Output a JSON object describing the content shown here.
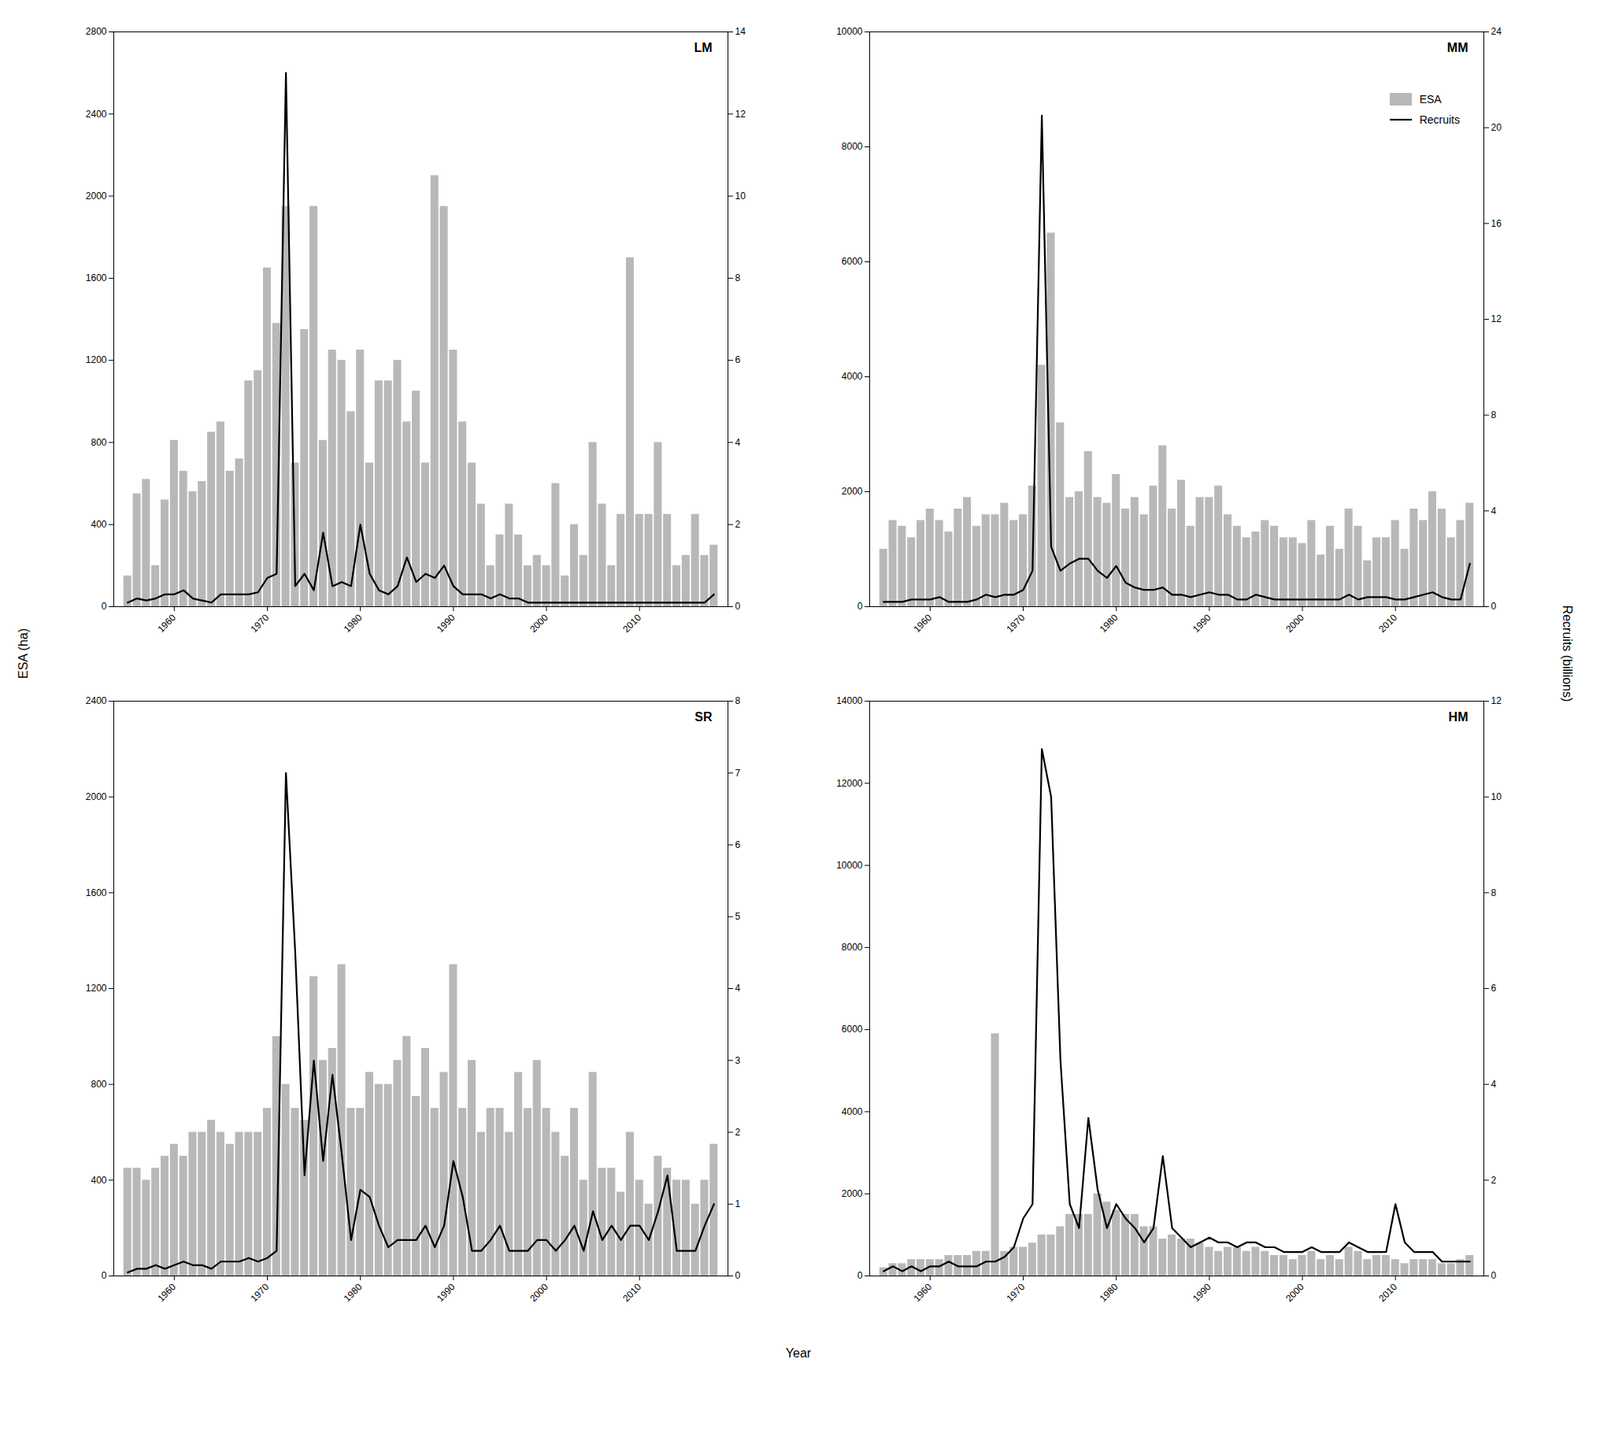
{
  "chart_data": [
    {
      "type": "bar",
      "title": "LM",
      "x": [
        1955,
        1956,
        1957,
        1958,
        1959,
        1960,
        1961,
        1962,
        1963,
        1964,
        1965,
        1966,
        1967,
        1968,
        1969,
        1970,
        1971,
        1972,
        1973,
        1974,
        1975,
        1976,
        1977,
        1978,
        1979,
        1980,
        1981,
        1982,
        1983,
        1984,
        1985,
        1986,
        1987,
        1988,
        1989,
        1990,
        1991,
        1992,
        1993,
        1994,
        1995,
        1996,
        1997,
        1998,
        1999,
        2000,
        2001,
        2002,
        2003,
        2004,
        2005,
        2006,
        2007,
        2008,
        2009,
        2010,
        2011,
        2012,
        2013,
        2014,
        2015,
        2016,
        2017,
        2018
      ],
      "series": [
        {
          "name": "ESA",
          "type": "bar",
          "color": "#b8b8b8",
          "values": [
            150,
            550,
            620,
            200,
            520,
            810,
            660,
            560,
            610,
            850,
            900,
            660,
            720,
            1100,
            1150,
            1650,
            1380,
            1950,
            700,
            1350,
            1950,
            810,
            1250,
            1200,
            950,
            1250,
            700,
            1100,
            1100,
            1200,
            900,
            1050,
            700,
            2100,
            1950,
            1250,
            900,
            700,
            500,
            200,
            350,
            500,
            350,
            200,
            250,
            200,
            600,
            150,
            400,
            250,
            800,
            500,
            200,
            450,
            1700,
            450,
            450,
            800,
            450,
            200,
            250,
            450,
            250,
            300
          ]
        },
        {
          "name": "Recruits",
          "type": "line",
          "axis": "y2",
          "color": "#000000",
          "values": [
            0.1,
            0.2,
            0.15,
            0.2,
            0.3,
            0.3,
            0.4,
            0.2,
            0.15,
            0.1,
            0.3,
            0.3,
            0.3,
            0.3,
            0.35,
            0.7,
            0.8,
            13.0,
            0.5,
            0.8,
            0.4,
            1.8,
            0.5,
            0.6,
            0.5,
            2.0,
            0.8,
            0.4,
            0.3,
            0.5,
            1.2,
            0.6,
            0.8,
            0.7,
            1.0,
            0.5,
            0.3,
            0.3,
            0.3,
            0.2,
            0.3,
            0.2,
            0.2,
            0.1,
            0.1,
            0.1,
            0.1,
            0.1,
            0.1,
            0.1,
            0.1,
            0.1,
            0.1,
            0.1,
            0.1,
            0.1,
            0.1,
            0.1,
            0.1,
            0.1,
            0.1,
            0.1,
            0.1,
            0.3
          ]
        }
      ],
      "xlim": [
        1953.5,
        2019.5
      ],
      "xticks": [
        1960,
        1970,
        1980,
        1990,
        2000,
        2010
      ],
      "ylim": [
        0,
        2800
      ],
      "yticks": [
        0,
        400,
        800,
        1200,
        1600,
        2000,
        2400,
        2800
      ],
      "y2lim": [
        0,
        14
      ],
      "y2ticks": [
        0,
        2,
        4,
        6,
        8,
        10,
        12,
        14
      ],
      "grid": false
    },
    {
      "type": "bar",
      "title": "MM",
      "x": [
        1955,
        1956,
        1957,
        1958,
        1959,
        1960,
        1961,
        1962,
        1963,
        1964,
        1965,
        1966,
        1967,
        1968,
        1969,
        1970,
        1971,
        1972,
        1973,
        1974,
        1975,
        1976,
        1977,
        1978,
        1979,
        1980,
        1981,
        1982,
        1983,
        1984,
        1985,
        1986,
        1987,
        1988,
        1989,
        1990,
        1991,
        1992,
        1993,
        1994,
        1995,
        1996,
        1997,
        1998,
        1999,
        2000,
        2001,
        2002,
        2003,
        2004,
        2005,
        2006,
        2007,
        2008,
        2009,
        2010,
        2011,
        2012,
        2013,
        2014,
        2015,
        2016,
        2017,
        2018
      ],
      "series": [
        {
          "name": "ESA",
          "type": "bar",
          "color": "#b8b8b8",
          "values": [
            1000,
            1500,
            1400,
            1200,
            1500,
            1700,
            1500,
            1300,
            1700,
            1900,
            1400,
            1600,
            1600,
            1800,
            1500,
            1600,
            2100,
            4200,
            6500,
            3200,
            1900,
            2000,
            2700,
            1900,
            1800,
            2300,
            1700,
            1900,
            1600,
            2100,
            2800,
            1700,
            2200,
            1400,
            1900,
            1900,
            2100,
            1600,
            1400,
            1200,
            1300,
            1500,
            1400,
            1200,
            1200,
            1100,
            1500,
            900,
            1400,
            1000,
            1700,
            1400,
            800,
            1200,
            1200,
            1500,
            1000,
            1700,
            1500,
            2000,
            1700,
            1200,
            1500,
            1800
          ]
        },
        {
          "name": "Recruits",
          "type": "line",
          "axis": "y2",
          "color": "#000000",
          "values": [
            0.2,
            0.2,
            0.2,
            0.3,
            0.3,
            0.3,
            0.4,
            0.2,
            0.2,
            0.2,
            0.3,
            0.5,
            0.4,
            0.5,
            0.5,
            0.7,
            1.5,
            20.5,
            2.5,
            1.5,
            1.8,
            2.0,
            2.0,
            1.5,
            1.2,
            1.7,
            1.0,
            0.8,
            0.7,
            0.7,
            0.8,
            0.5,
            0.5,
            0.4,
            0.5,
            0.6,
            0.5,
            0.5,
            0.3,
            0.3,
            0.5,
            0.4,
            0.3,
            0.3,
            0.3,
            0.3,
            0.3,
            0.3,
            0.3,
            0.3,
            0.5,
            0.3,
            0.4,
            0.4,
            0.4,
            0.3,
            0.3,
            0.4,
            0.5,
            0.6,
            0.4,
            0.3,
            0.3,
            1.8
          ]
        }
      ],
      "xlim": [
        1953.5,
        2019.5
      ],
      "xticks": [
        1960,
        1970,
        1980,
        1990,
        2000,
        2010
      ],
      "ylim": [
        0,
        10000
      ],
      "yticks": [
        0,
        2000,
        4000,
        6000,
        8000,
        10000
      ],
      "y2lim": [
        0,
        24
      ],
      "y2ticks": [
        0,
        4,
        8,
        12,
        16,
        20,
        24
      ],
      "grid": false,
      "legend": "upper right"
    },
    {
      "type": "bar",
      "title": "SR",
      "x": [
        1955,
        1956,
        1957,
        1958,
        1959,
        1960,
        1961,
        1962,
        1963,
        1964,
        1965,
        1966,
        1967,
        1968,
        1969,
        1970,
        1971,
        1972,
        1973,
        1974,
        1975,
        1976,
        1977,
        1978,
        1979,
        1980,
        1981,
        1982,
        1983,
        1984,
        1985,
        1986,
        1987,
        1988,
        1989,
        1990,
        1991,
        1992,
        1993,
        1994,
        1995,
        1996,
        1997,
        1998,
        1999,
        2000,
        2001,
        2002,
        2003,
        2004,
        2005,
        2006,
        2007,
        2008,
        2009,
        2010,
        2011,
        2012,
        2013,
        2014,
        2015,
        2016,
        2017,
        2018
      ],
      "series": [
        {
          "name": "ESA",
          "type": "bar",
          "color": "#b8b8b8",
          "values": [
            450,
            450,
            400,
            450,
            500,
            550,
            500,
            600,
            600,
            650,
            600,
            550,
            600,
            600,
            600,
            700,
            1000,
            800,
            700,
            650,
            1250,
            900,
            950,
            1300,
            700,
            700,
            850,
            800,
            800,
            900,
            1000,
            750,
            950,
            700,
            850,
            1300,
            700,
            900,
            600,
            700,
            700,
            600,
            850,
            700,
            900,
            700,
            600,
            500,
            700,
            400,
            850,
            450,
            450,
            350,
            600,
            400,
            300,
            500,
            450,
            400,
            400,
            300,
            400,
            550
          ]
        },
        {
          "name": "Recruits",
          "type": "line",
          "axis": "y2",
          "color": "#000000",
          "values": [
            0.05,
            0.1,
            0.1,
            0.15,
            0.1,
            0.15,
            0.2,
            0.15,
            0.15,
            0.1,
            0.2,
            0.2,
            0.2,
            0.25,
            0.2,
            0.25,
            0.35,
            7.0,
            4.5,
            1.4,
            3.0,
            1.6,
            2.8,
            1.7,
            0.5,
            1.2,
            1.1,
            0.7,
            0.4,
            0.5,
            0.5,
            0.5,
            0.7,
            0.4,
            0.7,
            1.6,
            1.1,
            0.35,
            0.35,
            0.5,
            0.7,
            0.35,
            0.35,
            0.35,
            0.5,
            0.5,
            0.35,
            0.5,
            0.7,
            0.35,
            0.9,
            0.5,
            0.7,
            0.5,
            0.7,
            0.7,
            0.5,
            0.9,
            1.4,
            0.35,
            0.35,
            0.35,
            0.7,
            1.0
          ]
        }
      ],
      "xlim": [
        1953.5,
        2019.5
      ],
      "xticks": [
        1960,
        1970,
        1980,
        1990,
        2000,
        2010
      ],
      "ylim": [
        0,
        2400
      ],
      "yticks": [
        0,
        400,
        800,
        1200,
        1600,
        2000,
        2400
      ],
      "y2lim": [
        0,
        8
      ],
      "y2ticks": [
        0,
        1,
        2,
        3,
        4,
        5,
        6,
        7,
        8
      ],
      "grid": false
    },
    {
      "type": "bar",
      "title": "HM",
      "x": [
        1955,
        1956,
        1957,
        1958,
        1959,
        1960,
        1961,
        1962,
        1963,
        1964,
        1965,
        1966,
        1967,
        1968,
        1969,
        1970,
        1971,
        1972,
        1973,
        1974,
        1975,
        1976,
        1977,
        1978,
        1979,
        1980,
        1981,
        1982,
        1983,
        1984,
        1985,
        1986,
        1987,
        1988,
        1989,
        1990,
        1991,
        1992,
        1993,
        1994,
        1995,
        1996,
        1997,
        1998,
        1999,
        2000,
        2001,
        2002,
        2003,
        2004,
        2005,
        2006,
        2007,
        2008,
        2009,
        2010,
        2011,
        2012,
        2013,
        2014,
        2015,
        2016,
        2017,
        2018
      ],
      "series": [
        {
          "name": "ESA",
          "type": "bar",
          "color": "#b8b8b8",
          "values": [
            200,
            300,
            300,
            400,
            400,
            400,
            400,
            500,
            500,
            500,
            600,
            600,
            5900,
            600,
            700,
            700,
            800,
            1000,
            1000,
            1200,
            1500,
            1500,
            1500,
            2000,
            1800,
            1600,
            1500,
            1500,
            1200,
            1200,
            900,
            1000,
            900,
            900,
            800,
            700,
            600,
            700,
            700,
            600,
            700,
            600,
            500,
            500,
            400,
            500,
            600,
            400,
            500,
            400,
            700,
            600,
            400,
            500,
            500,
            400,
            300,
            400,
            400,
            400,
            300,
            300,
            400,
            500
          ]
        },
        {
          "name": "Recruits",
          "type": "line",
          "axis": "y2",
          "color": "#000000",
          "values": [
            0.1,
            0.2,
            0.1,
            0.2,
            0.1,
            0.2,
            0.2,
            0.3,
            0.2,
            0.2,
            0.2,
            0.3,
            0.3,
            0.4,
            0.6,
            1.2,
            1.5,
            11.0,
            10.0,
            4.5,
            1.5,
            1.0,
            3.3,
            1.8,
            1.0,
            1.5,
            1.2,
            1.0,
            0.7,
            1.0,
            2.5,
            1.0,
            0.8,
            0.6,
            0.7,
            0.8,
            0.7,
            0.7,
            0.6,
            0.7,
            0.7,
            0.6,
            0.6,
            0.5,
            0.5,
            0.5,
            0.6,
            0.5,
            0.5,
            0.5,
            0.7,
            0.6,
            0.5,
            0.5,
            0.5,
            1.5,
            0.7,
            0.5,
            0.5,
            0.5,
            0.3,
            0.3,
            0.3,
            0.3
          ]
        }
      ],
      "xlim": [
        1953.5,
        2019.5
      ],
      "xticks": [
        1960,
        1970,
        1980,
        1990,
        2000,
        2010
      ],
      "ylim": [
        0,
        14000
      ],
      "yticks": [
        0,
        2000,
        4000,
        6000,
        8000,
        10000,
        12000,
        14000
      ],
      "y2lim": [
        0,
        12
      ],
      "y2ticks": [
        0,
        2,
        4,
        6,
        8,
        10,
        12
      ],
      "grid": false
    }
  ],
  "xlabel": "Year",
  "ylabel": "ESA (ha)",
  "y2label": "Recruits (billions)"
}
